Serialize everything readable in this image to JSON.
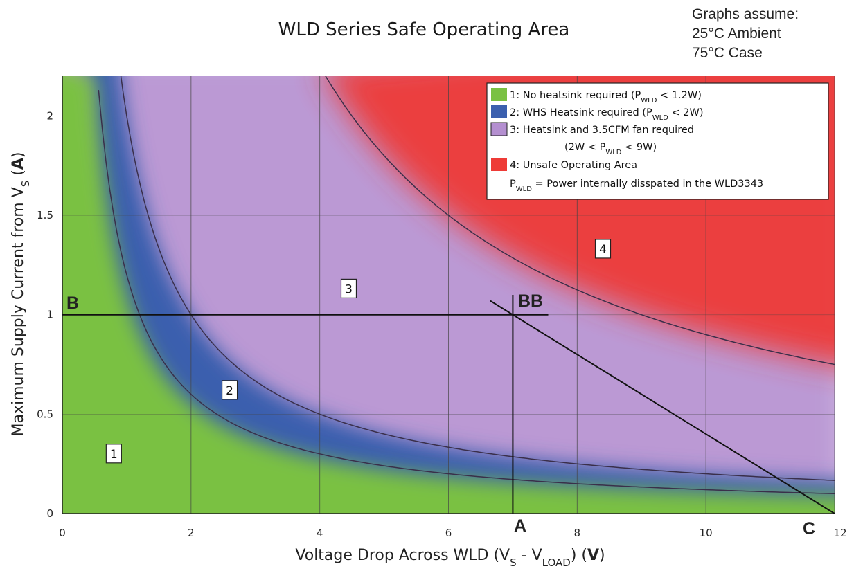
{
  "chart_data": {
    "type": "area",
    "title": "WLD Series Safe Operating Area",
    "assumptions": [
      "Graphs assume:",
      "25°C Ambient",
      "75°C Case"
    ],
    "xlabel": {
      "text": "Voltage Drop Across WLD (V",
      "sub1": "S",
      "mid": " - V",
      "sub2": "LOAD",
      "end": ") (",
      "bold": "V",
      "close": ")"
    },
    "ylabel": {
      "text": "Maximum Supply Current from V",
      "sub": "S",
      "open": " (",
      "bold": "A",
      "close": ")"
    },
    "xlim": [
      0,
      12
    ],
    "ylim": [
      0,
      2.2
    ],
    "x_ticks": [
      0,
      2,
      4,
      6,
      8,
      10,
      12
    ],
    "y_ticks": [
      0,
      0.5,
      1,
      1.5,
      2
    ],
    "y_tick_labels": [
      "0",
      "0.5",
      "1",
      "1.5",
      "2"
    ],
    "grid": true,
    "legend_position": "top-right",
    "series": [
      {
        "name": "1:  No heatsink required (P",
        "sub": "WLD",
        "tail": " < 1.2W)",
        "color": "#7ac143",
        "power_limit_w": 1.2
      },
      {
        "name": "2:  WHS Heatsink required (P",
        "sub": "WLD",
        "tail": " < 2W)",
        "color": "#3b5fae",
        "power_limit_w": 2
      },
      {
        "name": "3:  Heatsink and 3.5CFM fan required",
        "line2": "(2W < P",
        "sub": "WLD",
        "tail": " < 9W)",
        "color": "#b48fd0",
        "power_limit_w": 9
      },
      {
        "name": "4:  Unsafe Operating Area",
        "color": "#ee3b37"
      }
    ],
    "legend_note": {
      "text": "P",
      "sub": "WLD",
      "tail": " = Power internally disspated in the WLD3343"
    },
    "region_labels": [
      "1",
      "2",
      "3",
      "4"
    ],
    "load_line": {
      "x": [
        6.65,
        12
      ],
      "y": [
        1.07,
        0
      ]
    },
    "operating_point": {
      "x": 7,
      "y": 1
    },
    "point_labels": {
      "B": "B",
      "BB": "BB",
      "A": "A",
      "C": "C"
    }
  }
}
